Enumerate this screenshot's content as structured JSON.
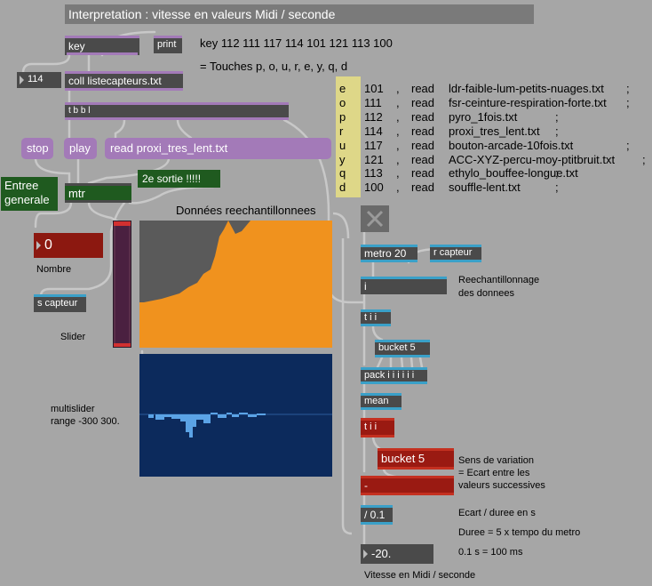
{
  "title": "Interpretation : vitesse en valeurs Midi / seconde",
  "key_obj": "key",
  "print_obj": "print",
  "key_comment": "key 112 111 117 114 101 121 113 100",
  "touches_comment": "= Touches p, o, u, r, e, y, q, d",
  "num_114": "114",
  "coll_obj": "coll listecapteurs.txt",
  "tbbl_obj": "t b b l",
  "stop_msg": "stop",
  "play_msg": "play",
  "read_msg": "read proxi_tres_lent.txt",
  "entree_label": "Entree\ngenerale",
  "mtr_obj": "mtr",
  "sortie_label": "2e sortie !!!!!",
  "nombre_value": "0",
  "nombre_label": "Nombre",
  "s_capteur": "s capteur",
  "slider_label": "Slider",
  "donnees_label": "Données reechantillonnees",
  "multislider_label": "multislider\nrange -300 300.",
  "table": {
    "letters": [
      "e",
      "o",
      "p",
      "r",
      "u",
      "y",
      "q",
      "d"
    ],
    "rows": [
      {
        "num": "101",
        "sep": ",",
        "cmd": "read",
        "file": "ldr-faible-lum-petits-nuages.txt",
        "end": ";"
      },
      {
        "num": "111",
        "sep": ",",
        "cmd": "read",
        "file": "fsr-ceinture-respiration-forte.txt",
        "end": ";"
      },
      {
        "num": "112",
        "sep": ",",
        "cmd": "read",
        "file": "pyro_1fois.txt",
        "end": ";"
      },
      {
        "num": "114",
        "sep": ",",
        "cmd": "read",
        "file": "proxi_tres_lent.txt",
        "end": ";"
      },
      {
        "num": "117",
        "sep": ",",
        "cmd": "read",
        "file": "bouton-arcade-10fois.txt",
        "end": ";"
      },
      {
        "num": "121",
        "sep": ",",
        "cmd": "read",
        "file": "ACC-XYZ-percu-moy-ptitbruit.txt",
        "end": ";"
      },
      {
        "num": "113",
        "sep": ",",
        "cmd": "read",
        "file": "ethylo_bouffee-longue.txt",
        "end": ";"
      },
      {
        "num": "100",
        "sep": ",",
        "cmd": "read",
        "file": "souffle-lent.txt",
        "end": ";"
      }
    ]
  },
  "metro_obj": "metro 20",
  "r_capteur": "r capteur",
  "i_obj": "i",
  "reech_label": "Reechantillonnage\ndes donnees",
  "tii_obj": "t i i",
  "bucket5_a": "bucket 5",
  "pack_obj": "pack i i i i i i",
  "mean_obj": "mean",
  "tii_red": "t i i",
  "bucket5_b": "bucket 5",
  "minus_obj": "-",
  "sens_label": "Sens de variation\n= Ecart entre les\nvaleurs successives",
  "div_obj": "/ 0.1",
  "ecart_label": "Ecart / duree en s",
  "duree_label": "Duree = 5 x tempo du metro",
  "ms_label": "0.1 s = 100 ms",
  "vitesse_value": "-20.",
  "vitesse_label": "Vitesse en Midi / seconde",
  "colors": {
    "background": "#a6a6a6",
    "object": "#4a4a4a",
    "purple": "#a37ab8",
    "green": "#1f5a1f",
    "red": "#9a1a12",
    "orange": "#f0921e",
    "navy": "#0c2a5c",
    "yellow": "#ded788",
    "blue_bar": "#5ba3e6"
  }
}
